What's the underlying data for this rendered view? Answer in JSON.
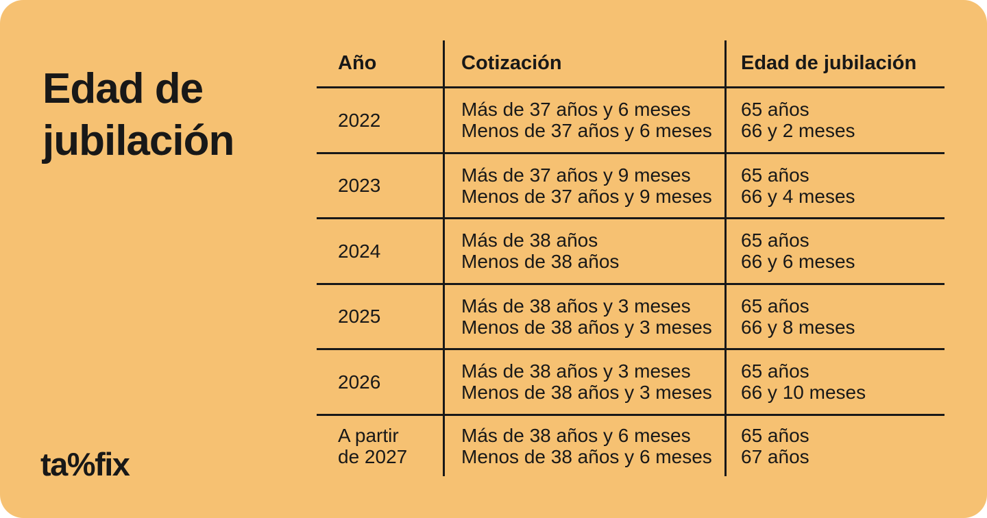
{
  "title": {
    "line1": "Edad de",
    "line2": "jubilación"
  },
  "colors": {
    "background": "#F6C172",
    "ink": "#181818"
  },
  "logo": {
    "wordmark": "taxfix",
    "part1": "ta",
    "percent": "%",
    "part2": "fix"
  },
  "table": {
    "headers": [
      "Año",
      "Cotización",
      "Edad de jubilación"
    ],
    "rows": [
      {
        "year": [
          "2022"
        ],
        "cotizacion": [
          "Más de 37 años y 6 meses",
          "Menos de 37 años y 6 meses"
        ],
        "edad": [
          "65 años",
          "66 y 2 meses"
        ]
      },
      {
        "year": [
          "2023"
        ],
        "cotizacion": [
          "Más de 37 años y 9 meses",
          "Menos de 37 años y 9 meses"
        ],
        "edad": [
          "65 años",
          "66 y 4 meses"
        ]
      },
      {
        "year": [
          "2024"
        ],
        "cotizacion": [
          "Más de 38 años",
          "Menos de 38 años"
        ],
        "edad": [
          "65 años",
          "66 y 6 meses"
        ]
      },
      {
        "year": [
          "2025"
        ],
        "cotizacion": [
          "Más de 38 años y 3 meses",
          "Menos de 38 años y 3 meses"
        ],
        "edad": [
          "65 años",
          "66 y 8 meses"
        ]
      },
      {
        "year": [
          "2026"
        ],
        "cotizacion": [
          "Más de 38 años y 3 meses",
          "Menos de 38 años y 3 meses"
        ],
        "edad": [
          "65 años",
          "66 y 10 meses"
        ]
      },
      {
        "year": [
          "A partir",
          "de 2027"
        ],
        "cotizacion": [
          "Más de 38 años y 6 meses",
          "Menos de 38 años y 6 meses"
        ],
        "edad": [
          "65 años",
          "67 años"
        ]
      }
    ]
  },
  "chart_data": {
    "type": "table",
    "title": "Edad de jubilación",
    "columns": [
      "Año",
      "Cotización",
      "Edad de jubilación"
    ],
    "rows": [
      [
        "2022",
        "Más de 37 años y 6 meses | Menos de 37 años y 6 meses",
        "65 años | 66 y 2 meses"
      ],
      [
        "2023",
        "Más de 37 años y 9 meses | Menos de 37 años y 9 meses",
        "65 años | 66 y 4 meses"
      ],
      [
        "2024",
        "Más de 38 años | Menos de 38 años",
        "65 años | 66 y 6 meses"
      ],
      [
        "2025",
        "Más de 38 años y 3 meses | Menos de 38 años y 3 meses",
        "65 años | 66 y 8 meses"
      ],
      [
        "2026",
        "Más de 38 años y 3 meses | Menos de 38 años y 3 meses",
        "65 años | 66 y 10 meses"
      ],
      [
        "A partir de 2027",
        "Más de 38 años y 6 meses | Menos de 38 años y 6 meses",
        "65 años | 67 años"
      ]
    ],
    "layout_hints": {
      "grid": "horizontal row dividers plus two vertical column dividers, no outer border",
      "legend_position": "none"
    }
  }
}
